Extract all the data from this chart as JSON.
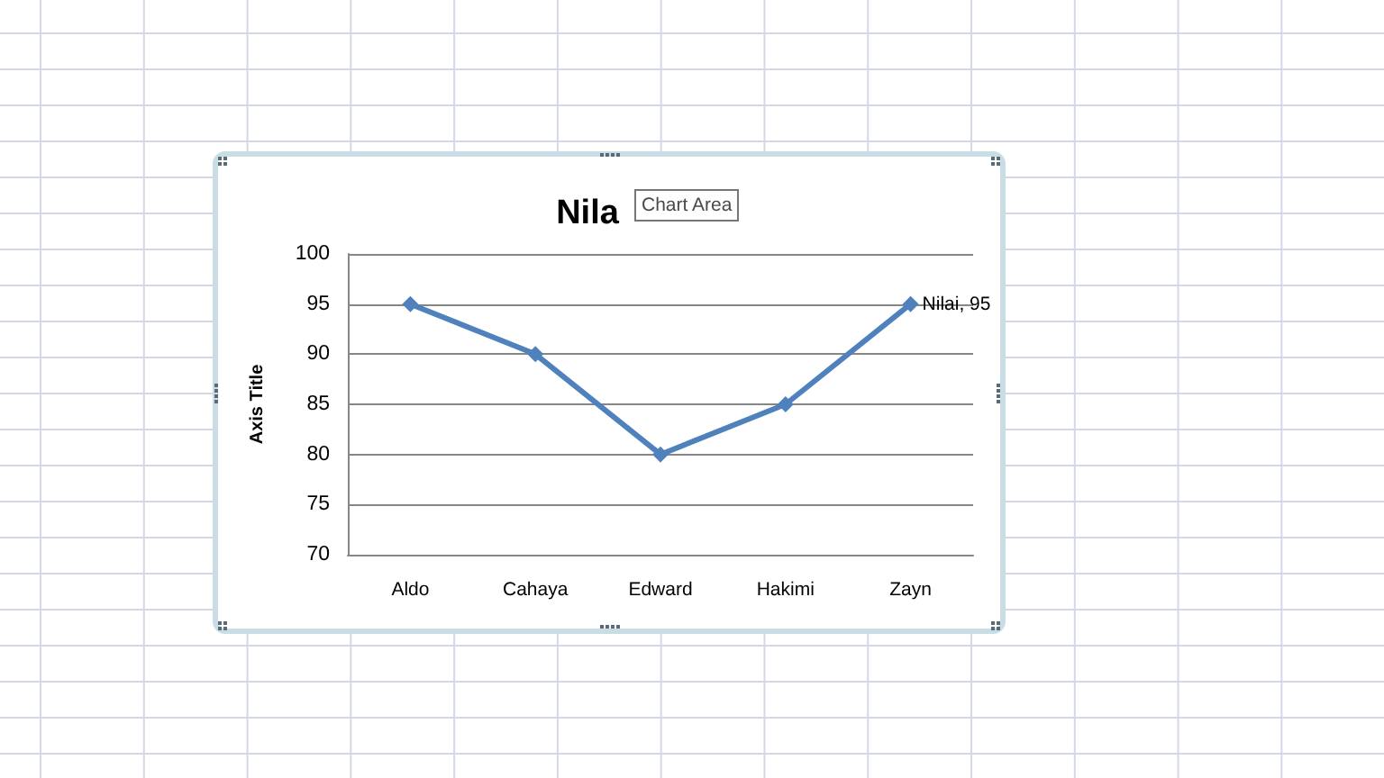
{
  "chart_data": {
    "type": "line",
    "title": "Nila",
    "ylabel": "Axis Title",
    "annotations": [
      "Chart Area"
    ],
    "categories": [
      "Aldo",
      "Cahaya",
      "Edward",
      "Hakimi",
      "Zayn"
    ],
    "series": [
      {
        "color": "#4f81bd",
        "values": [
          95,
          90,
          80,
          85,
          95
        ],
        "value_labels": [
          null,
          null,
          null,
          null,
          "Nilai, 95"
        ]
      }
    ],
    "ylim": [
      70,
      100
    ],
    "yticks": [
      70,
      75,
      80,
      85,
      90,
      95,
      100
    ],
    "grid": "y",
    "marker": "diamond",
    "line_style": "solid"
  }
}
